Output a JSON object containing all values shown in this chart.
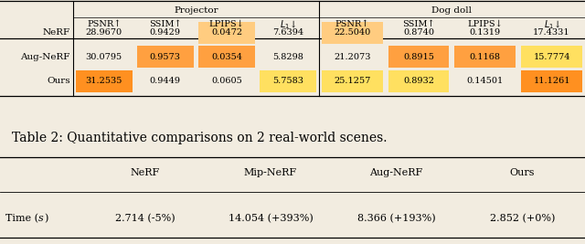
{
  "table1_title_left": "Projector",
  "table1_title_right": "Dog doll",
  "table1_col_headers": [
    "PSNR↑",
    "SSIM↑",
    "LPIPS↓",
    "L_1↓",
    "PSNR↑",
    "SSIM↑",
    "LPIPS↓",
    "L_1↓"
  ],
  "table1_row_labels": [
    "NeRF",
    "Aug-NeRF",
    "Ours"
  ],
  "table1_data": [
    [
      "28.9670",
      "0.9429",
      "0.0472",
      "7.6394",
      "22.5040",
      "0.8740",
      "0.1319",
      "17.4331"
    ],
    [
      "30.0795",
      "0.9573",
      "0.0354",
      "5.8298",
      "21.2073",
      "0.8915",
      "0.1168",
      "15.7774"
    ],
    [
      "31.2535",
      "0.9449",
      "0.0605",
      "5.7583",
      "25.1257",
      "0.8932",
      "0.14501",
      "11.1261"
    ]
  ],
  "table1_highlight_orange": [
    [
      0,
      2
    ],
    [
      1,
      1
    ],
    [
      1,
      2
    ],
    [
      2,
      0
    ],
    [
      0,
      4
    ],
    [
      1,
      5
    ],
    [
      1,
      6
    ],
    [
      2,
      7
    ]
  ],
  "table1_highlight_yellow": [
    [
      2,
      3
    ],
    [
      1,
      7
    ],
    [
      2,
      4
    ],
    [
      2,
      5
    ]
  ],
  "table1_highlight_deep_orange": [
    [
      2,
      0
    ],
    [
      1,
      1
    ],
    [
      1,
      2
    ]
  ],
  "caption": "Table 2: Quantitative comparisons on 2 real-world scenes.",
  "table2_col_headers": [
    "NeRF",
    "Mip-NeRF",
    "Aug-NeRF",
    "Ours"
  ],
  "table2_row_label": "Time (s)",
  "table2_data": [
    "2.714 (-5%)",
    "14.054 (+393%)",
    "8.366 (+193%)",
    "2.852 (+0%)"
  ],
  "bg_color": "#f2ece0",
  "color_orange": "#FFA040",
  "color_yellow": "#FFE680",
  "color_deep_orange": "#FF8C00"
}
